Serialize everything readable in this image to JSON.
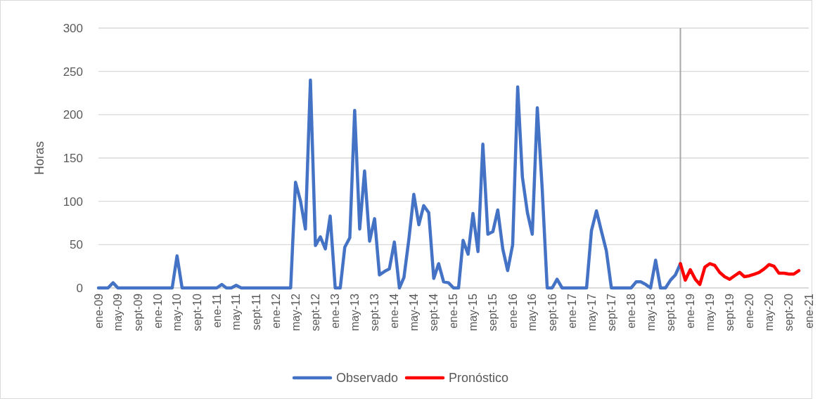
{
  "chart_data": {
    "type": "line",
    "ylabel": "Horas",
    "ylim": [
      0,
      300
    ],
    "yticks": [
      0,
      50,
      100,
      150,
      200,
      250,
      300
    ],
    "grid": "y",
    "legend": "bottom",
    "line_style": "solid",
    "marker": "none",
    "xlim": [
      "2009-01",
      "2021-01"
    ],
    "xticks": [
      {
        "value": "2009-01",
        "label": "ene-09"
      },
      {
        "value": "2009-05",
        "label": "may-09"
      },
      {
        "value": "2009-09",
        "label": "sept-09"
      },
      {
        "value": "2010-01",
        "label": "ene-10"
      },
      {
        "value": "2010-05",
        "label": "may-10"
      },
      {
        "value": "2010-09",
        "label": "sept-10"
      },
      {
        "value": "2011-01",
        "label": "ene-11"
      },
      {
        "value": "2011-05",
        "label": "may-11"
      },
      {
        "value": "2011-09",
        "label": "sept-11"
      },
      {
        "value": "2012-01",
        "label": "ene-12"
      },
      {
        "value": "2012-05",
        "label": "may-12"
      },
      {
        "value": "2012-09",
        "label": "sept-12"
      },
      {
        "value": "2013-01",
        "label": "ene-13"
      },
      {
        "value": "2013-05",
        "label": "may-13"
      },
      {
        "value": "2013-09",
        "label": "sept-13"
      },
      {
        "value": "2014-01",
        "label": "ene-14"
      },
      {
        "value": "2014-05",
        "label": "may-14"
      },
      {
        "value": "2014-09",
        "label": "sept-14"
      },
      {
        "value": "2015-01",
        "label": "ene-15"
      },
      {
        "value": "2015-05",
        "label": "may-15"
      },
      {
        "value": "2015-09",
        "label": "sept-15"
      },
      {
        "value": "2016-01",
        "label": "ene-16"
      },
      {
        "value": "2016-05",
        "label": "may-16"
      },
      {
        "value": "2016-09",
        "label": "sept-16"
      },
      {
        "value": "2017-01",
        "label": "ene-17"
      },
      {
        "value": "2017-05",
        "label": "may-17"
      },
      {
        "value": "2017-09",
        "label": "sept-17"
      },
      {
        "value": "2018-01",
        "label": "ene-18"
      },
      {
        "value": "2018-05",
        "label": "may-18"
      },
      {
        "value": "2018-09",
        "label": "sept-18"
      },
      {
        "value": "2019-01",
        "label": "ene-19"
      },
      {
        "value": "2019-05",
        "label": "may-19"
      },
      {
        "value": "2019-09",
        "label": "sept-19"
      },
      {
        "value": "2020-01",
        "label": "ene-20"
      },
      {
        "value": "2020-05",
        "label": "may-20"
      },
      {
        "value": "2020-09",
        "label": "sept-20"
      },
      {
        "value": "2021-01",
        "label": "ene-21"
      }
    ],
    "ref_lines": [
      {
        "axis": "x",
        "value": "2018-11",
        "color": "#a6a6a6"
      }
    ],
    "x": [
      "2009-01",
      "2009-02",
      "2009-03",
      "2009-04",
      "2009-05",
      "2009-06",
      "2009-07",
      "2009-08",
      "2009-09",
      "2009-10",
      "2009-11",
      "2009-12",
      "2010-01",
      "2010-02",
      "2010-03",
      "2010-04",
      "2010-05",
      "2010-06",
      "2010-07",
      "2010-08",
      "2010-09",
      "2010-10",
      "2010-11",
      "2010-12",
      "2011-01",
      "2011-02",
      "2011-03",
      "2011-04",
      "2011-05",
      "2011-06",
      "2011-07",
      "2011-08",
      "2011-09",
      "2011-10",
      "2011-11",
      "2011-12",
      "2012-01",
      "2012-02",
      "2012-03",
      "2012-04",
      "2012-05",
      "2012-06",
      "2012-07",
      "2012-08",
      "2012-09",
      "2012-10",
      "2012-11",
      "2012-12",
      "2013-01",
      "2013-02",
      "2013-03",
      "2013-04",
      "2013-05",
      "2013-06",
      "2013-07",
      "2013-08",
      "2013-09",
      "2013-10",
      "2013-11",
      "2013-12",
      "2014-01",
      "2014-02",
      "2014-03",
      "2014-04",
      "2014-05",
      "2014-06",
      "2014-07",
      "2014-08",
      "2014-09",
      "2014-10",
      "2014-11",
      "2014-12",
      "2015-01",
      "2015-02",
      "2015-03",
      "2015-04",
      "2015-05",
      "2015-06",
      "2015-07",
      "2015-08",
      "2015-09",
      "2015-10",
      "2015-11",
      "2015-12",
      "2016-01",
      "2016-02",
      "2016-03",
      "2016-04",
      "2016-05",
      "2016-06",
      "2016-07",
      "2016-08",
      "2016-09",
      "2016-10",
      "2016-11",
      "2016-12",
      "2017-01",
      "2017-02",
      "2017-03",
      "2017-04",
      "2017-05",
      "2017-06",
      "2017-07",
      "2017-08",
      "2017-09",
      "2017-10",
      "2017-11",
      "2017-12",
      "2018-01",
      "2018-02",
      "2018-03",
      "2018-04",
      "2018-05",
      "2018-06",
      "2018-07",
      "2018-08",
      "2018-09",
      "2018-10",
      "2018-11",
      "2018-12",
      "2019-01",
      "2019-02",
      "2019-03",
      "2019-04",
      "2019-05",
      "2019-06",
      "2019-07",
      "2019-08",
      "2019-09",
      "2019-10",
      "2019-11",
      "2019-12",
      "2020-01",
      "2020-02",
      "2020-03",
      "2020-04",
      "2020-05",
      "2020-06",
      "2020-07",
      "2020-08",
      "2020-09",
      "2020-10",
      "2020-11"
    ],
    "series": [
      {
        "name": "Observado",
        "color": "#4472c4",
        "values": [
          0,
          0,
          0,
          6,
          0,
          0,
          0,
          0,
          0,
          0,
          0,
          0,
          0,
          0,
          0,
          0,
          37,
          0,
          0,
          0,
          0,
          0,
          0,
          0,
          0,
          4,
          0,
          0,
          3,
          0,
          0,
          0,
          0,
          0,
          0,
          0,
          0,
          0,
          0,
          0,
          122,
          100,
          68,
          240,
          49,
          59,
          45,
          83,
          0,
          0,
          47,
          58,
          205,
          68,
          135,
          54,
          80,
          15,
          19,
          22,
          53,
          0,
          12,
          57,
          108,
          73,
          95,
          87,
          11,
          28,
          7,
          6,
          0,
          0,
          55,
          39,
          86,
          42,
          166,
          62,
          65,
          90,
          45,
          20,
          50,
          232,
          128,
          87,
          62,
          208,
          115,
          0,
          0,
          10,
          0,
          0,
          0,
          0,
          0,
          0,
          66,
          89,
          66,
          43,
          0,
          0,
          0,
          0,
          0,
          7,
          7,
          4,
          0,
          32,
          0,
          0,
          9,
          15,
          28,
          null,
          null,
          null,
          null,
          null,
          null,
          null,
          null,
          null,
          null,
          null,
          null,
          null,
          null,
          null,
          null,
          null,
          null,
          null,
          null,
          null,
          null,
          null,
          null
        ]
      },
      {
        "name": "Pronóstico",
        "color": "#ff0000",
        "values": [
          null,
          null,
          null,
          null,
          null,
          null,
          null,
          null,
          null,
          null,
          null,
          null,
          null,
          null,
          null,
          null,
          null,
          null,
          null,
          null,
          null,
          null,
          null,
          null,
          null,
          null,
          null,
          null,
          null,
          null,
          null,
          null,
          null,
          null,
          null,
          null,
          null,
          null,
          null,
          null,
          null,
          null,
          null,
          null,
          null,
          null,
          null,
          null,
          null,
          null,
          null,
          null,
          null,
          null,
          null,
          null,
          null,
          null,
          null,
          null,
          null,
          null,
          null,
          null,
          null,
          null,
          null,
          null,
          null,
          null,
          null,
          null,
          null,
          null,
          null,
          null,
          null,
          null,
          null,
          null,
          null,
          null,
          null,
          null,
          null,
          null,
          null,
          null,
          null,
          null,
          null,
          null,
          null,
          null,
          null,
          null,
          null,
          null,
          null,
          null,
          null,
          null,
          null,
          null,
          null,
          null,
          null,
          null,
          null,
          null,
          null,
          null,
          null,
          null,
          null,
          null,
          null,
          null,
          28,
          9,
          21,
          10,
          4,
          24,
          28,
          26,
          18,
          13,
          10,
          14,
          18,
          13,
          14,
          16,
          18,
          22,
          27,
          25,
          17,
          17,
          16,
          16,
          20
        ]
      }
    ]
  }
}
